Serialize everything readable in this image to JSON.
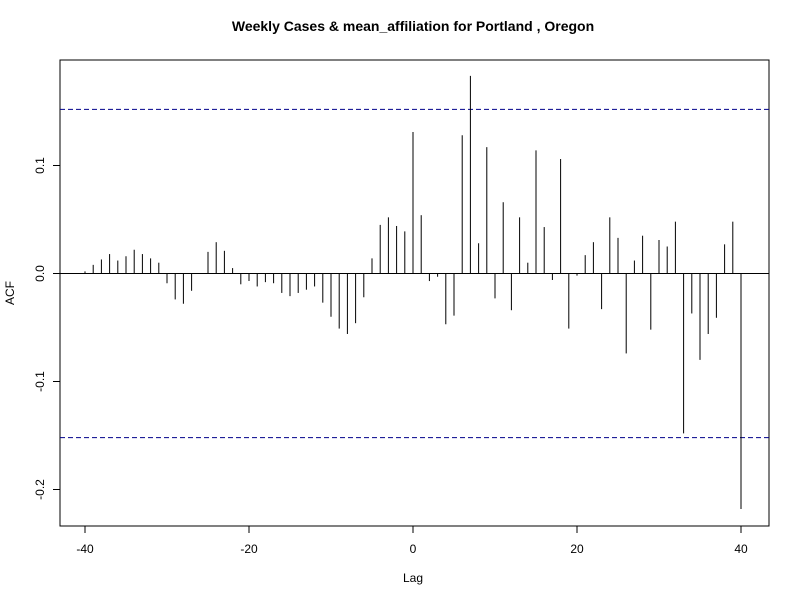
{
  "chart_data": {
    "type": "bar",
    "title": "Weekly Cases & mean_affiliation for Portland , Oregon",
    "xlabel": "Lag",
    "ylabel": "ACF",
    "xlim": [
      -40,
      40
    ],
    "ylim": [
      -0.22,
      0.183
    ],
    "x_ticks": [
      -40,
      -20,
      0,
      20,
      40
    ],
    "y_ticks": [
      -0.2,
      -0.1,
      0.0,
      0.1
    ],
    "x_tick_labels": [
      "-40",
      "-20",
      "0",
      "20",
      "40"
    ],
    "y_tick_labels": [
      "-0.2",
      "-0.1",
      "0.0",
      "0.1"
    ],
    "confidence_bounds": [
      0.152,
      -0.152
    ],
    "grid": false,
    "lags": [
      -40,
      -39,
      -38,
      -37,
      -36,
      -35,
      -34,
      -33,
      -32,
      -31,
      -30,
      -29,
      -28,
      -27,
      -26,
      -25,
      -24,
      -23,
      -22,
      -21,
      -20,
      -19,
      -18,
      -17,
      -16,
      -15,
      -14,
      -13,
      -12,
      -11,
      -10,
      -9,
      -8,
      -7,
      -6,
      -5,
      -4,
      -3,
      -2,
      -1,
      0,
      1,
      2,
      3,
      4,
      5,
      6,
      7,
      8,
      9,
      10,
      11,
      12,
      13,
      14,
      15,
      16,
      17,
      18,
      19,
      20,
      21,
      22,
      23,
      24,
      25,
      26,
      27,
      28,
      29,
      30,
      31,
      32,
      33,
      34,
      35,
      36,
      37,
      38,
      39,
      40
    ],
    "values": [
      0.002,
      0.008,
      0.013,
      0.018,
      0.012,
      0.016,
      0.022,
      0.018,
      0.014,
      0.01,
      -0.009,
      -0.024,
      -0.028,
      -0.016,
      0.0,
      0.02,
      0.029,
      0.021,
      0.005,
      -0.01,
      -0.007,
      -0.012,
      -0.008,
      -0.009,
      -0.018,
      -0.021,
      -0.018,
      -0.015,
      -0.012,
      -0.027,
      -0.04,
      -0.051,
      -0.056,
      -0.046,
      -0.022,
      0.014,
      0.045,
      0.052,
      0.044,
      0.039,
      0.131,
      0.054,
      -0.007,
      -0.003,
      -0.047,
      -0.039,
      0.128,
      0.183,
      0.028,
      0.117,
      -0.023,
      0.066,
      -0.034,
      0.052,
      0.01,
      0.114,
      0.043,
      -0.006,
      0.106,
      -0.051,
      -0.002,
      0.017,
      0.029,
      -0.033,
      0.052,
      0.033,
      -0.074,
      0.012,
      0.035,
      -0.052,
      0.031,
      0.025,
      0.048,
      -0.148,
      -0.037,
      -0.08,
      -0.056,
      -0.041,
      0.027,
      0.048,
      -0.218
    ]
  },
  "colors": {
    "bars": "#000000",
    "bounds": "#00008b",
    "frame": "#000000"
  }
}
